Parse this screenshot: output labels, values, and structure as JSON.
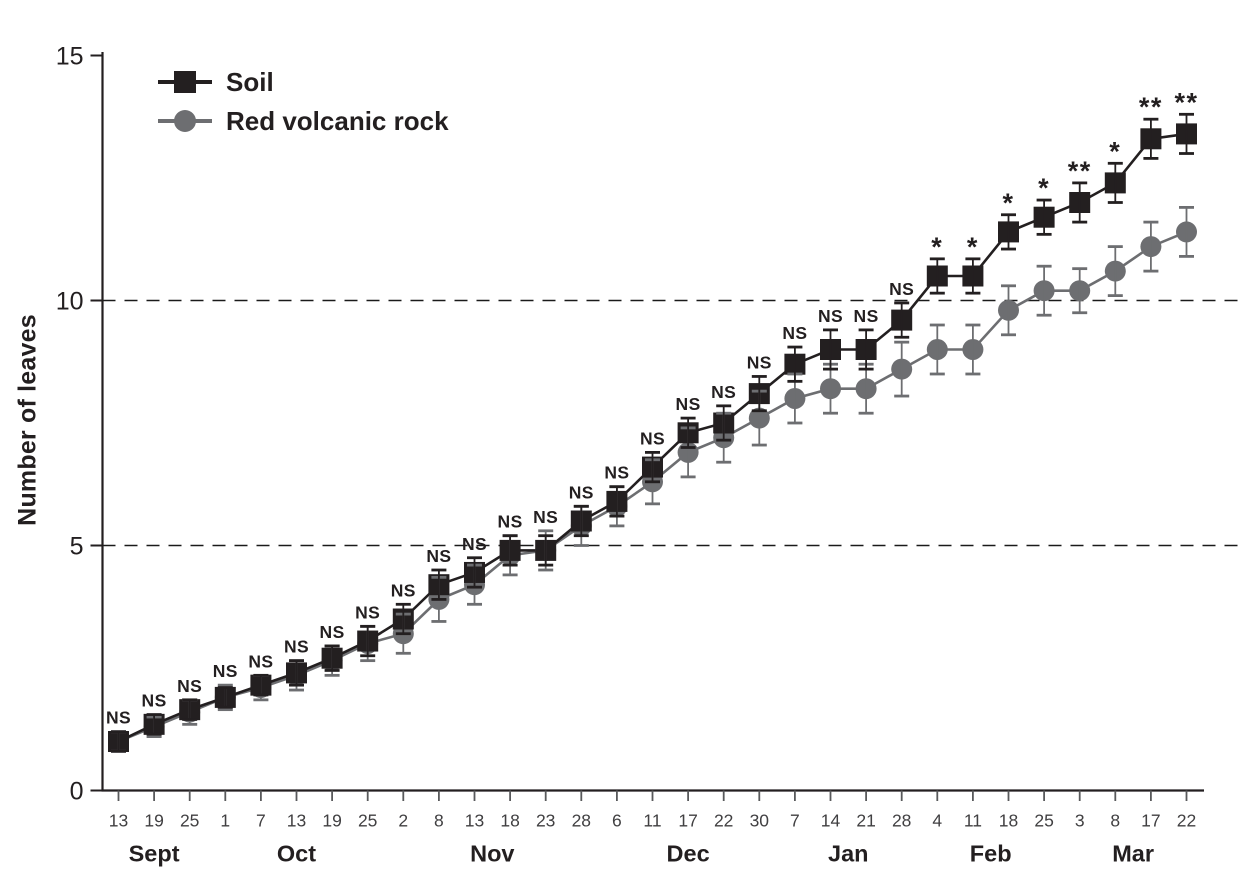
{
  "page": {
    "background": "#ffffff"
  },
  "chart_data": {
    "type": "line",
    "title": "",
    "xlabel": "",
    "ylabel": "Number of leaves",
    "ylim": [
      0,
      15
    ],
    "yticks": [
      0,
      5,
      10,
      15
    ],
    "gridlines_y": [
      5,
      10
    ],
    "grid_style": "dashed",
    "legend_position": "top-left",
    "x_tick_labels": [
      "13",
      "19",
      "25",
      "1",
      "7",
      "13",
      "19",
      "25",
      "2",
      "8",
      "13",
      "18",
      "23",
      "28",
      "6",
      "11",
      "17",
      "22",
      "30",
      "7",
      "14",
      "21",
      "28",
      "4",
      "11",
      "18",
      "25",
      "3",
      "8",
      "17",
      "22"
    ],
    "months": [
      {
        "label": "Sept",
        "start": 0,
        "end": 2
      },
      {
        "label": "Oct",
        "start": 3,
        "end": 7
      },
      {
        "label": "Nov",
        "start": 8,
        "end": 13
      },
      {
        "label": "Dec",
        "start": 14,
        "end": 18
      },
      {
        "label": "Jan",
        "start": 19,
        "end": 22
      },
      {
        "label": "Feb",
        "start": 23,
        "end": 26
      },
      {
        "label": "Mar",
        "start": 27,
        "end": 30
      }
    ],
    "series": [
      {
        "name": "Soil",
        "marker": "square",
        "color": "#231f20",
        "values": [
          1.0,
          1.35,
          1.65,
          1.9,
          2.15,
          2.4,
          2.7,
          3.05,
          3.5,
          4.2,
          4.45,
          4.9,
          4.9,
          5.5,
          5.9,
          6.6,
          7.3,
          7.5,
          8.1,
          8.7,
          9.0,
          9.0,
          9.6,
          10.5,
          10.5,
          11.4,
          11.7,
          12.0,
          12.4,
          13.3,
          13.4
        ],
        "errors": [
          0.2,
          0.2,
          0.2,
          0.2,
          0.2,
          0.25,
          0.25,
          0.3,
          0.3,
          0.3,
          0.3,
          0.3,
          0.3,
          0.3,
          0.3,
          0.3,
          0.3,
          0.35,
          0.35,
          0.35,
          0.4,
          0.4,
          0.35,
          0.35,
          0.35,
          0.35,
          0.35,
          0.4,
          0.4,
          0.4,
          0.4
        ]
      },
      {
        "name": "Red volcanic rock",
        "marker": "circle",
        "color": "#6d6e71",
        "values": [
          1.0,
          1.3,
          1.6,
          1.9,
          2.1,
          2.35,
          2.65,
          3.0,
          3.2,
          3.9,
          4.2,
          4.8,
          4.9,
          5.4,
          5.8,
          6.3,
          6.9,
          7.2,
          7.6,
          8.0,
          8.2,
          8.2,
          8.6,
          9.0,
          9.0,
          9.8,
          10.2,
          10.2,
          10.6,
          11.1,
          11.4
        ],
        "errors": [
          0.2,
          0.2,
          0.25,
          0.25,
          0.25,
          0.3,
          0.3,
          0.35,
          0.4,
          0.45,
          0.4,
          0.4,
          0.4,
          0.4,
          0.4,
          0.45,
          0.5,
          0.5,
          0.55,
          0.5,
          0.5,
          0.5,
          0.55,
          0.5,
          0.5,
          0.5,
          0.5,
          0.45,
          0.5,
          0.5,
          0.5
        ]
      }
    ],
    "significance": [
      "NS",
      "NS",
      "NS",
      "NS",
      "NS",
      "NS",
      "NS",
      "NS",
      "NS",
      "NS",
      "NS",
      "NS",
      "NS",
      "NS",
      "NS",
      "NS",
      "NS",
      "NS",
      "NS",
      "NS",
      "NS",
      "NS",
      "NS",
      "*",
      "*",
      "*",
      "*",
      "**",
      "*",
      "**",
      "**"
    ],
    "colors": {
      "axis": "#231f20",
      "tick": "#58595b",
      "tick_label": "#414042",
      "grid": "#1a1a1a",
      "significance": "#231f20"
    }
  }
}
